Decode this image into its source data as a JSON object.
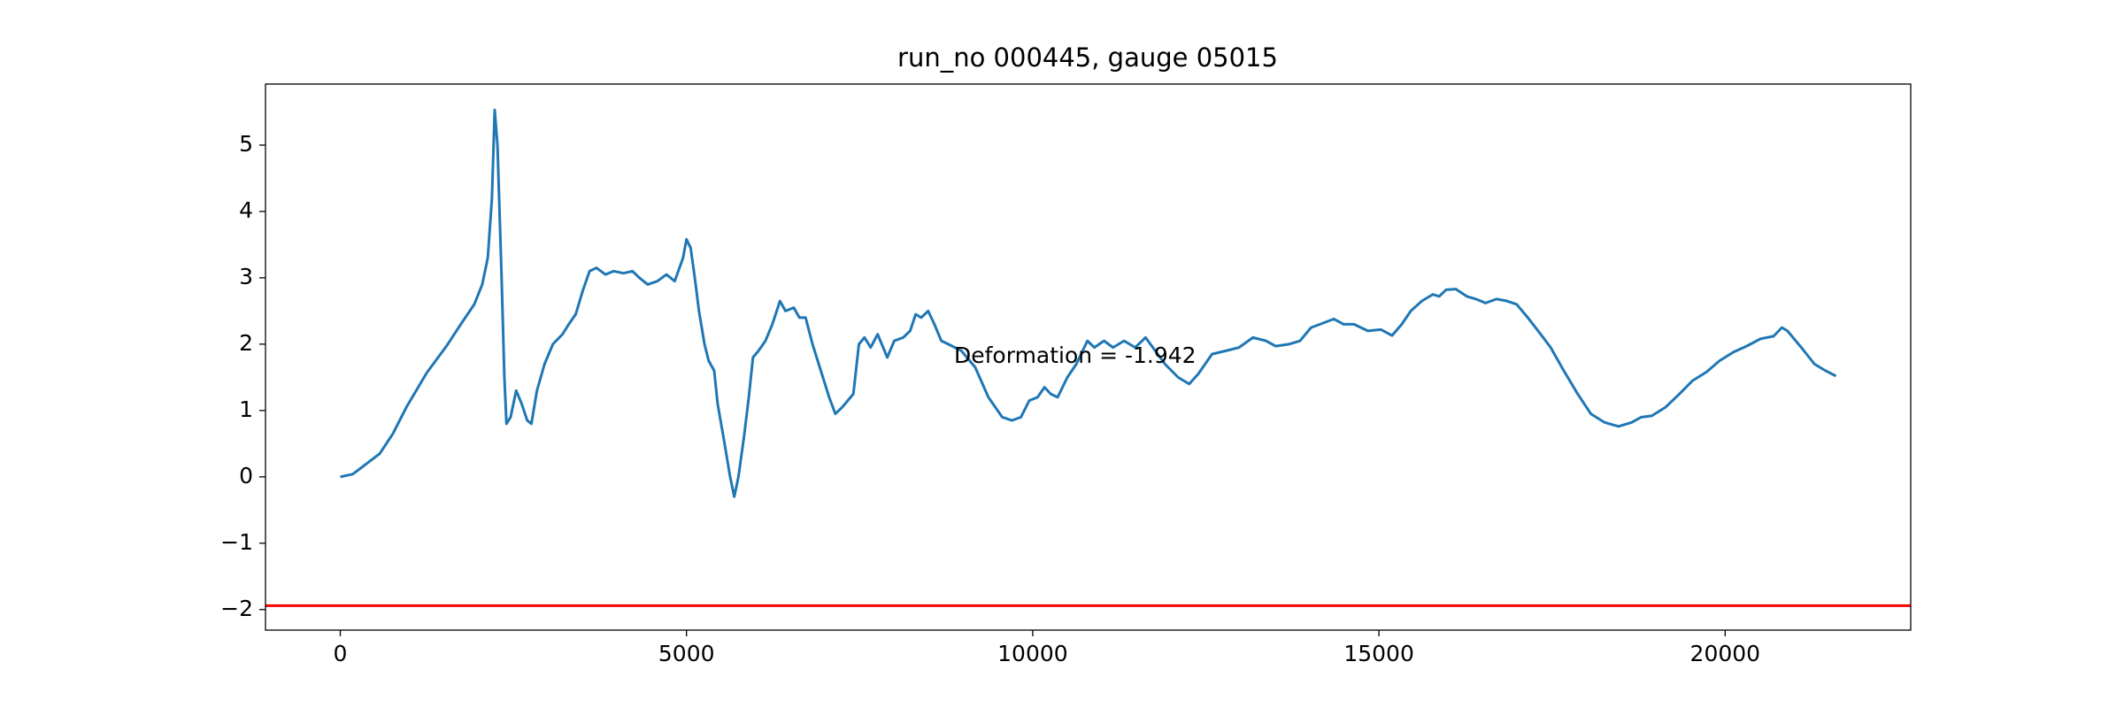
{
  "chart_data": {
    "type": "line",
    "title": "run_no 000445, gauge 05015",
    "annotation": "Deformation = -1.942",
    "x": [
      0,
      180,
      570,
      760,
      960,
      1250,
      1540,
      1740,
      1935,
      2050,
      2130,
      2190,
      2230,
      2270,
      2330,
      2370,
      2400,
      2460,
      2540,
      2620,
      2700,
      2760,
      2840,
      2950,
      3070,
      3210,
      3300,
      3400,
      3500,
      3600,
      3700,
      3830,
      3950,
      4090,
      4220,
      4320,
      4440,
      4580,
      4710,
      4830,
      4950,
      5000,
      5060,
      5120,
      5180,
      5260,
      5320,
      5400,
      5450,
      5550,
      5630,
      5690,
      5750,
      5830,
      5900,
      5960,
      6040,
      6140,
      6240,
      6350,
      6430,
      6550,
      6630,
      6720,
      6820,
      6940,
      7060,
      7150,
      7250,
      7410,
      7490,
      7570,
      7660,
      7760,
      7900,
      8000,
      8130,
      8230,
      8310,
      8390,
      8490,
      8580,
      8680,
      8780,
      8970,
      9170,
      9360,
      9560,
      9700,
      9830,
      9950,
      10070,
      10170,
      10260,
      10360,
      10500,
      10630,
      10790,
      10890,
      11030,
      11160,
      11320,
      11480,
      11630,
      11770,
      11910,
      12100,
      12260,
      12390,
      12590,
      12790,
      12980,
      13180,
      13370,
      13510,
      13700,
      13860,
      14020,
      14150,
      14350,
      14490,
      14640,
      14840,
      15030,
      15190,
      15330,
      15460,
      15620,
      15780,
      15870,
      15970,
      16110,
      16270,
      16400,
      16540,
      16700,
      16850,
      16990,
      17150,
      17300,
      17480,
      17670,
      17870,
      18060,
      18260,
      18460,
      18650,
      18790,
      18940,
      19140,
      19340,
      19530,
      19730,
      19920,
      20120,
      20310,
      20510,
      20700,
      20820,
      20900,
      21100,
      21290,
      21450,
      21600
    ],
    "values": [
      0,
      0.04,
      0.35,
      0.65,
      1.06,
      1.57,
      1.98,
      2.3,
      2.6,
      2.9,
      3.3,
      4.2,
      5.53,
      5.0,
      3.0,
      1.5,
      0.8,
      0.9,
      1.3,
      1.1,
      0.85,
      0.8,
      1.3,
      1.7,
      2.0,
      2.15,
      2.3,
      2.45,
      2.8,
      3.1,
      3.15,
      3.05,
      3.1,
      3.07,
      3.1,
      3.0,
      2.9,
      2.95,
      3.05,
      2.95,
      3.3,
      3.58,
      3.45,
      3.0,
      2.5,
      2.0,
      1.75,
      1.6,
      1.1,
      0.5,
      0.0,
      -0.3,
      0.0,
      0.6,
      1.2,
      1.8,
      1.9,
      2.05,
      2.3,
      2.65,
      2.5,
      2.55,
      2.4,
      2.4,
      2.0,
      1.6,
      1.2,
      0.95,
      1.05,
      1.25,
      2.0,
      2.1,
      1.95,
      2.15,
      1.8,
      2.05,
      2.1,
      2.2,
      2.45,
      2.4,
      2.5,
      2.3,
      2.05,
      2.0,
      1.9,
      1.65,
      1.2,
      0.9,
      0.85,
      0.9,
      1.15,
      1.2,
      1.35,
      1.25,
      1.2,
      1.5,
      1.7,
      2.05,
      1.95,
      2.05,
      1.95,
      2.05,
      1.95,
      2.1,
      1.9,
      1.7,
      1.5,
      1.4,
      1.55,
      1.85,
      1.9,
      1.95,
      2.1,
      2.05,
      1.97,
      2.0,
      2.05,
      2.25,
      2.3,
      2.38,
      2.3,
      2.3,
      2.2,
      2.22,
      2.13,
      2.3,
      2.5,
      2.65,
      2.75,
      2.72,
      2.82,
      2.83,
      2.72,
      2.68,
      2.62,
      2.68,
      2.65,
      2.6,
      2.4,
      2.2,
      1.95,
      1.6,
      1.25,
      0.95,
      0.82,
      0.76,
      0.82,
      0.9,
      0.92,
      1.05,
      1.25,
      1.45,
      1.58,
      1.75,
      1.88,
      1.97,
      2.08,
      2.12,
      2.25,
      2.2,
      1.95,
      1.7,
      1.6,
      1.52
    ],
    "color": "#1f77b4",
    "hline": {
      "value": -1.942,
      "color": "#ff0000"
    },
    "xlim": [
      -1080,
      22680
    ],
    "ylim": [
      -2.31,
      5.92
    ],
    "xticks": [
      0,
      5000,
      10000,
      15000,
      20000
    ],
    "yticks": [
      {
        "value": -2,
        "label": "−2"
      },
      {
        "value": -1,
        "label": "−1"
      },
      0,
      1,
      2,
      3,
      4,
      5
    ]
  }
}
